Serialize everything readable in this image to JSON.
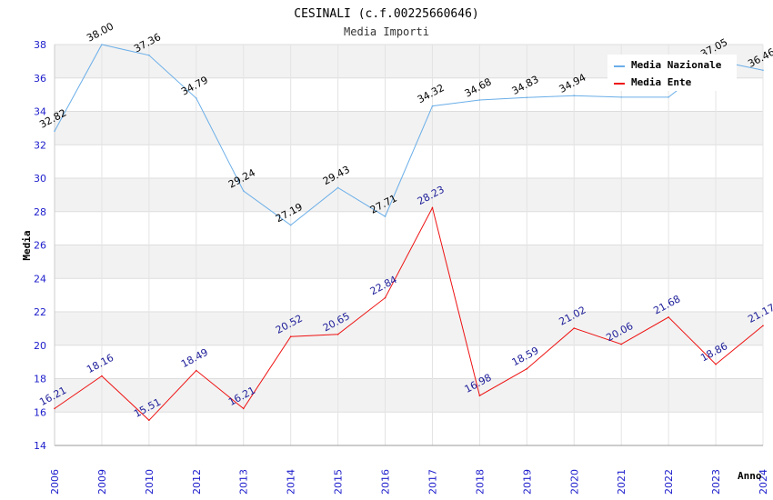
{
  "chart_data": {
    "type": "line",
    "title": "CESINALI (c.f.00225660646)",
    "subtitle": "Media Importi",
    "xlabel": "Anno",
    "ylabel": "Media",
    "ylim": [
      14,
      38
    ],
    "yticks": [
      "14",
      "16",
      "18",
      "20",
      "22",
      "24",
      "26",
      "28",
      "30",
      "32",
      "34",
      "36",
      "38"
    ],
    "categories": [
      "2006",
      "2009",
      "2010",
      "2012",
      "2013",
      "2014",
      "2015",
      "2016",
      "2017",
      "2018",
      "2019",
      "2020",
      "2021",
      "2022",
      "2023",
      "2024"
    ],
    "series": [
      {
        "name": "Media Nazionale",
        "color": "#6aaee8",
        "values": [
          32.82,
          38.0,
          37.36,
          34.79,
          29.24,
          27.19,
          29.43,
          27.71,
          34.32,
          34.68,
          34.83,
          34.94,
          34.85,
          34.85,
          37.05,
          36.46
        ],
        "labels": [
          "32.82",
          "38.00",
          "37.36",
          "34.79",
          "29.24",
          "27.19",
          "29.43",
          "27.71",
          "34.32",
          "34.68",
          "34.83",
          "34.94",
          "",
          "",
          "37.05",
          "36.46"
        ]
      },
      {
        "name": "Media Ente",
        "color": "#ee1111",
        "values": [
          16.21,
          18.16,
          15.51,
          18.49,
          16.21,
          20.52,
          20.65,
          22.84,
          28.23,
          16.98,
          18.59,
          21.02,
          20.06,
          21.68,
          18.86,
          21.17
        ],
        "labels": [
          "16.21",
          "18.16",
          "15.51",
          "18.49",
          "16.21",
          "20.52",
          "20.65",
          "22.84",
          "28.23",
          "16.98",
          "18.59",
          "21.02",
          "20.06",
          "21.68",
          "18.86",
          "21.17"
        ]
      }
    ],
    "legend": "top-right",
    "grid": true
  }
}
